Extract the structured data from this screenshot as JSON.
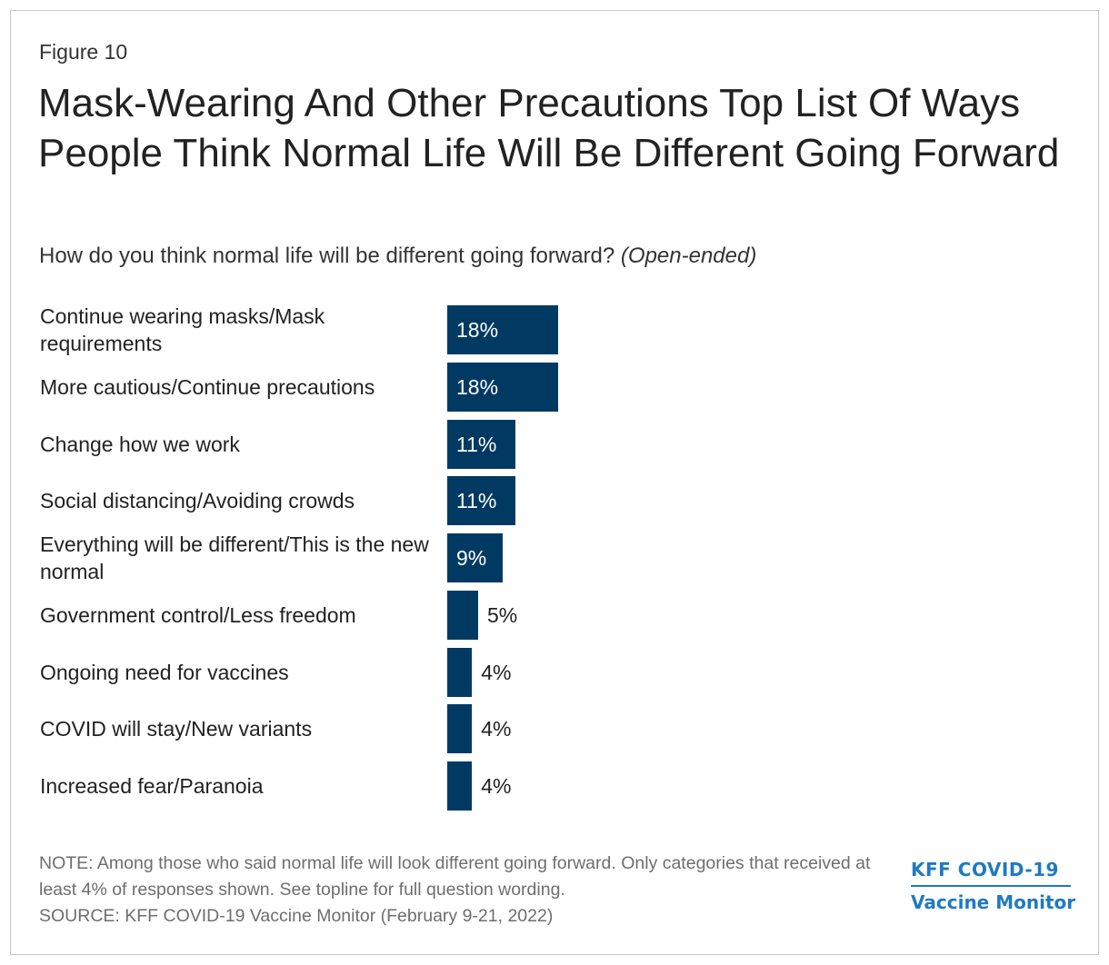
{
  "figure_label": "Figure 10",
  "title": "Mask-Wearing And Other Precautions Top List Of Ways People Think Normal Life Will Be Different Going Forward",
  "subtitle": {
    "question": "How do you think normal life will be different going forward?",
    "note": "(Open-ended)"
  },
  "chart_data": {
    "type": "bar",
    "orientation": "horizontal",
    "title": "Mask-Wearing And Other Precautions Top List Of Ways People Think Normal Life Will Be Different Going Forward",
    "xlabel": "",
    "ylabel": "",
    "categories": [
      "Continue wearing masks/Mask requirements",
      "More cautious/Continue precautions",
      "Change how we work",
      "Social distancing/Avoiding crowds",
      "Everything will be different/This is the new normal",
      "Government control/Less freedom",
      "Ongoing need for vaccines",
      "COVID will stay/New variants",
      "Increased fear/Paranoia"
    ],
    "values": [
      18,
      18,
      11,
      11,
      9,
      5,
      4,
      4,
      4
    ],
    "value_labels": [
      "18%",
      "18%",
      "11%",
      "11%",
      "9%",
      "5%",
      "4%",
      "4%",
      "4%"
    ],
    "unit": "%",
    "xlim": [
      0,
      100
    ],
    "grid": false,
    "legend": "none",
    "bar_color": "#003a63"
  },
  "footnote": {
    "note": "NOTE: Among those who said normal life will look different going forward. Only categories that received at least 4% of responses shown. See topline for full question wording.",
    "source": "SOURCE: KFF COVID-19 Vaccine Monitor (February 9-21, 2022)"
  },
  "logo": {
    "line1": "KFF COVID-19",
    "line2": "Vaccine Monitor",
    "color": "#1f7ac0"
  }
}
